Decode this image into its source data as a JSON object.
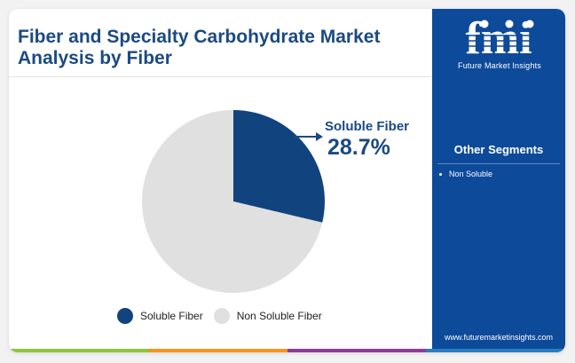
{
  "header": {
    "title": "Fiber and Specialty Carbohydrate Market Analysis by Fiber"
  },
  "chart_data": {
    "type": "pie",
    "categories": [
      "Soluble Fiber",
      "Non Soluble Fiber"
    ],
    "values": [
      28.7,
      71.3
    ],
    "unit": "%",
    "colors": [
      "#11437f",
      "#e0e0e0"
    ],
    "callout": {
      "label": "Soluble Fiber",
      "value": "28.7%"
    },
    "legend": {
      "position": "bottom",
      "items": [
        {
          "label": "Soluble Fiber",
          "color": "#11437f"
        },
        {
          "label": "Non Soluble Fiber",
          "color": "#e0e0e0"
        }
      ]
    }
  },
  "sidebar": {
    "logo_text": "fmi",
    "brand": "Future Market Insights",
    "segments_title": "Other Segments",
    "segments": [
      "Non Soluble"
    ],
    "website": "www.futuremarketinsights.com",
    "background": "#0e4a9a"
  },
  "footer_stripe_colors": [
    "#8dc63f",
    "#f7941d",
    "#8e3c97",
    "#2b7dc1"
  ]
}
